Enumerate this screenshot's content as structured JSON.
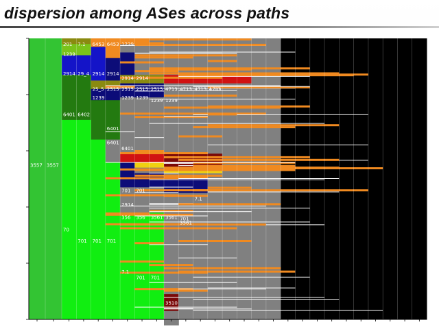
{
  "slide": {
    "title": "dispersion among ASes across paths"
  },
  "chart_data": {
    "type": "heatmap",
    "title": "",
    "xlabel": "",
    "ylabel": "",
    "colors": {
      "bright_green": "#11ee11",
      "green": "#33c433",
      "dark_green": "#237a10",
      "olive": "#8a8a10",
      "yellow_green": "#7ac31a",
      "orange": "#f08a20",
      "blue": "#1414c8",
      "navy": "#0c0c78",
      "red": "#d11212",
      "dark_red": "#7a0808",
      "yellow": "#f0d010",
      "grey": "#808080",
      "white": "#ffffff",
      "black": "#000000"
    },
    "labels": [
      {
        "text": "3557",
        "col": 0,
        "row": 0.44
      },
      {
        "text": "3557",
        "col": 1,
        "row": 0.44
      },
      {
        "text": "70",
        "col": 2,
        "row": 0.67
      },
      {
        "text": "201",
        "col": 2,
        "row": 0.01
      },
      {
        "text": "1239",
        "col": 2,
        "row": 0.045
      },
      {
        "text": "2914",
        "col": 2,
        "row": 0.115
      },
      {
        "text": "6401",
        "col": 2,
        "row": 0.26
      },
      {
        "text": "7.1",
        "col": 3,
        "row": 0.01
      },
      {
        "text": "29_4",
        "col": 3,
        "row": 0.115
      },
      {
        "text": "6402",
        "col": 3,
        "row": 0.26
      },
      {
        "text": "701",
        "col": 3,
        "row": 0.71
      },
      {
        "text": "6453",
        "col": 4,
        "row": 0.01
      },
      {
        "text": "2914",
        "col": 4,
        "row": 0.115
      },
      {
        "text": "1239",
        "col": 4,
        "row": 0.2
      },
      {
        "text": "25_5",
        "col": 4,
        "row": 0.17
      },
      {
        "text": "701",
        "col": 4,
        "row": 0.71
      },
      {
        "text": "6453",
        "col": 5,
        "row": 0.01
      },
      {
        "text": "2914",
        "col": 5,
        "row": 0.115
      },
      {
        "text": "2515",
        "col": 5,
        "row": 0.17
      },
      {
        "text": "6401",
        "col": 5,
        "row": 0.31
      },
      {
        "text": "6401",
        "col": 5,
        "row": 0.36
      },
      {
        "text": "701",
        "col": 5,
        "row": 0.71
      },
      {
        "text": "1239",
        "col": 6,
        "row": 0.01
      },
      {
        "text": "2515",
        "col": 6,
        "row": 0.17
      },
      {
        "text": "1239",
        "col": 6,
        "row": 0.2
      },
      {
        "text": "2914",
        "col": 6,
        "row": 0.13
      },
      {
        "text": "6401",
        "col": 6,
        "row": 0.38
      },
      {
        "text": "701",
        "col": 6,
        "row": 0.53
      },
      {
        "text": "2914",
        "col": 6,
        "row": 0.58
      },
      {
        "text": "356",
        "col": 6,
        "row": 0.625
      },
      {
        "text": "7.1",
        "col": 6,
        "row": 0.82
      },
      {
        "text": "2515",
        "col": 7,
        "row": 0.17
      },
      {
        "text": "1239",
        "col": 7,
        "row": 0.2
      },
      {
        "text": "2914",
        "col": 7,
        "row": 0.13
      },
      {
        "text": "701",
        "col": 7,
        "row": 0.53
      },
      {
        "text": "356",
        "col": 7,
        "row": 0.625
      },
      {
        "text": "701",
        "col": 7,
        "row": 0.84
      },
      {
        "text": "2515",
        "col": 8,
        "row": 0.17
      },
      {
        "text": "1239",
        "col": 8,
        "row": 0.21
      },
      {
        "text": "3561",
        "col": 8,
        "row": 0.625
      },
      {
        "text": "701",
        "col": 8,
        "row": 0.84
      },
      {
        "text": "4713",
        "col": 9,
        "row": 0.17
      },
      {
        "text": "1239",
        "col": 9,
        "row": 0.21
      },
      {
        "text": "3561",
        "col": 9,
        "row": 0.625
      },
      {
        "text": "3510",
        "col": 9,
        "row": 0.93
      },
      {
        "text": "4713",
        "col": 10,
        "row": 0.17
      },
      {
        "text": "701",
        "col": 10,
        "row": 0.63
      },
      {
        "text": "3561",
        "col": 10,
        "row": 0.645
      },
      {
        "text": "4713",
        "col": 11,
        "row": 0.17
      },
      {
        "text": "7.1",
        "col": 11,
        "row": 0.56
      },
      {
        "text": "4713",
        "col": 12,
        "row": 0.17
      },
      {
        "text": "1.10",
        "col": 12,
        "row": 0.17
      }
    ]
  }
}
